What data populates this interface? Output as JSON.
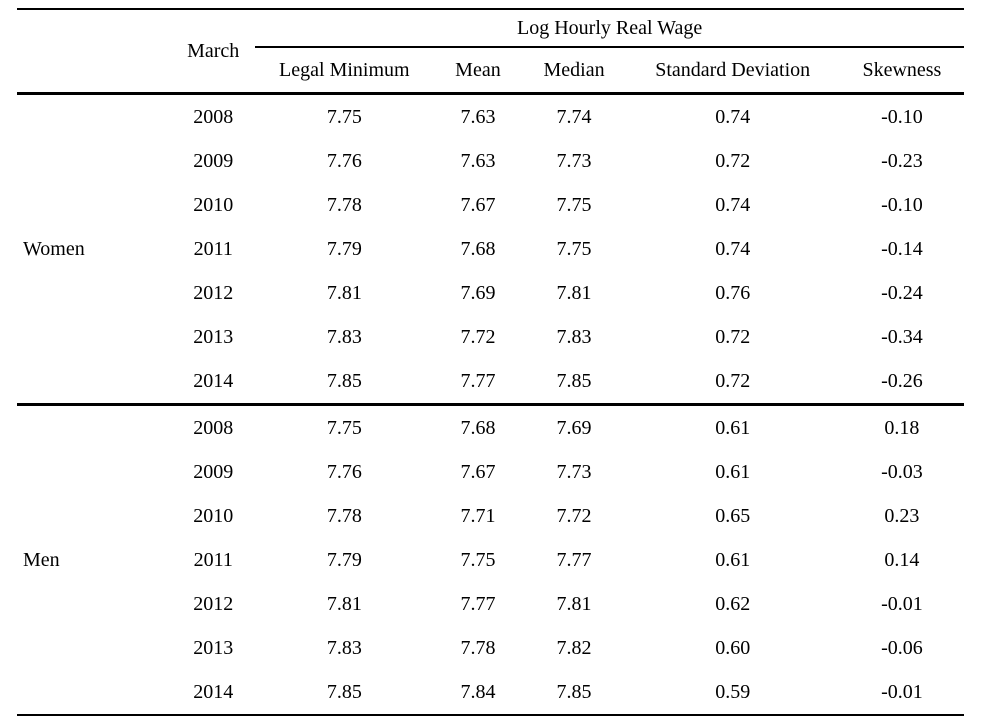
{
  "table": {
    "march_label": "March",
    "span_header": "Log Hourly Real Wage",
    "columns": [
      "Legal Minimum",
      "Mean",
      "Median",
      "Standard Deviation",
      "Skewness"
    ],
    "groups": [
      {
        "label": "Women",
        "rows": [
          {
            "year": "2008",
            "legal_minimum": "7.75",
            "mean": "7.63",
            "median": "7.74",
            "std_dev": "0.74",
            "skewness": "-0.10"
          },
          {
            "year": "2009",
            "legal_minimum": "7.76",
            "mean": "7.63",
            "median": "7.73",
            "std_dev": "0.72",
            "skewness": "-0.23"
          },
          {
            "year": "2010",
            "legal_minimum": "7.78",
            "mean": "7.67",
            "median": "7.75",
            "std_dev": "0.74",
            "skewness": "-0.10"
          },
          {
            "year": "2011",
            "legal_minimum": "7.79",
            "mean": "7.68",
            "median": "7.75",
            "std_dev": "0.74",
            "skewness": "-0.14"
          },
          {
            "year": "2012",
            "legal_minimum": "7.81",
            "mean": "7.69",
            "median": "7.81",
            "std_dev": "0.76",
            "skewness": "-0.24"
          },
          {
            "year": "2013",
            "legal_minimum": "7.83",
            "mean": "7.72",
            "median": "7.83",
            "std_dev": "0.72",
            "skewness": "-0.34"
          },
          {
            "year": "2014",
            "legal_minimum": "7.85",
            "mean": "7.77",
            "median": "7.85",
            "std_dev": "0.72",
            "skewness": "-0.26"
          }
        ]
      },
      {
        "label": "Men",
        "rows": [
          {
            "year": "2008",
            "legal_minimum": "7.75",
            "mean": "7.68",
            "median": "7.69",
            "std_dev": "0.61",
            "skewness": "0.18"
          },
          {
            "year": "2009",
            "legal_minimum": "7.76",
            "mean": "7.67",
            "median": "7.73",
            "std_dev": "0.61",
            "skewness": "-0.03"
          },
          {
            "year": "2010",
            "legal_minimum": "7.78",
            "mean": "7.71",
            "median": "7.72",
            "std_dev": "0.65",
            "skewness": "0.23"
          },
          {
            "year": "2011",
            "legal_minimum": "7.79",
            "mean": "7.75",
            "median": "7.77",
            "std_dev": "0.61",
            "skewness": "0.14"
          },
          {
            "year": "2012",
            "legal_minimum": "7.81",
            "mean": "7.77",
            "median": "7.81",
            "std_dev": "0.62",
            "skewness": "-0.01"
          },
          {
            "year": "2013",
            "legal_minimum": "7.83",
            "mean": "7.78",
            "median": "7.82",
            "std_dev": "0.60",
            "skewness": "-0.06"
          },
          {
            "year": "2014",
            "legal_minimum": "7.85",
            "mean": "7.84",
            "median": "7.85",
            "std_dev": "0.59",
            "skewness": "-0.01"
          }
        ]
      }
    ]
  }
}
